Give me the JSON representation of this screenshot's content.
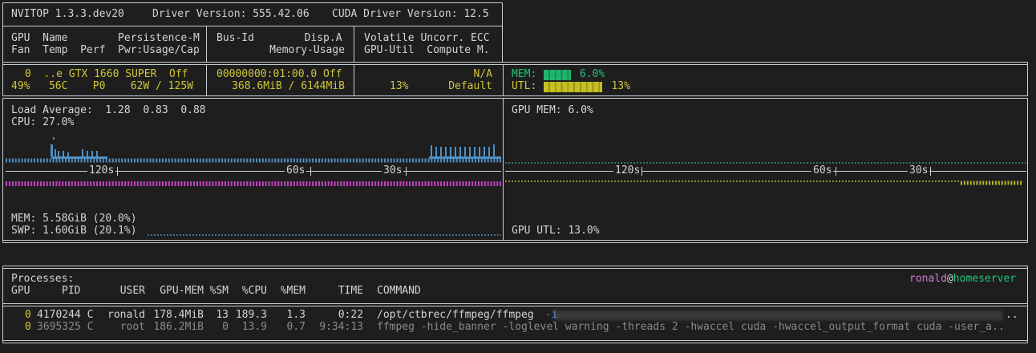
{
  "header": {
    "title": "NVITOP 1.3.3.dev20",
    "driver": "Driver Version: 555.42.06",
    "cuda": "CUDA Driver Version: 12.5"
  },
  "gpu_table": {
    "header": [
      [
        "GPU  Name        Persistence-M",
        "Fan  Temp  Perf  Pwr:Usage/Cap"
      ],
      [
        "Bus-Id        Disp.A",
        "Memory-Usage"
      ],
      [
        "Volatile Uncorr. ECC",
        "GPU-Util  Compute M."
      ]
    ],
    "row": {
      "name": "0  ..e GTX 1660 SUPER  Off",
      "stats": "49%   56C    P0    62W / 125W",
      "bus": "00000000:01:00.0 Off",
      "memory": "368.6MiB / 6144MiB",
      "ecc": "N/A",
      "util": "13%",
      "compute": "Default"
    },
    "meters": [
      {
        "name": "MEM:",
        "value": 6.0,
        "label": "6.0%"
      },
      {
        "name": "UTL:",
        "value": 13,
        "label": "13%"
      }
    ]
  },
  "cpu_panel": {
    "load": "Load Average:  1.28  0.83  0.88",
    "cpu": "CPU: 27.0%",
    "time_labels": [
      "120s",
      "60s",
      "30s"
    ],
    "mem": "MEM: 5.58GiB (20.0%)",
    "swap": "SWP: 1.60GiB (20.1%)"
  },
  "gpu_panel": {
    "mem": "GPU MEM: 6.0%",
    "time_labels": [
      "120s",
      "60s",
      "30s"
    ],
    "util": "GPU UTL: 13.0%"
  },
  "processes": {
    "title": "Processes:",
    "user": "ronald",
    "at": "@",
    "host": "homeserver",
    "columns": [
      "GPU",
      "PID",
      "USER",
      "GPU-MEM",
      "%SM",
      "%CPU",
      "%MEM",
      "TIME",
      "COMMAND"
    ],
    "rows": [
      {
        "gpu": "0",
        "pid": "4170244 C",
        "user": "ronald",
        "gpu_mem": "178.4MiB",
        "sm": "13",
        "cpu": "189.3",
        "mem": "1.3",
        "time": "0:22",
        "command": "/opt/ctbrec/ffmpeg/ffmpeg",
        "option": "-i",
        "truncation": ".."
      },
      {
        "gpu": "0",
        "pid": "3695325 C",
        "user": "root",
        "gpu_mem": "186.2MiB",
        "sm": "0",
        "cpu": "13.9",
        "mem": "0.7",
        "time": "9:34:13",
        "command": "ffmpeg -hide_banner -loglevel warning -threads 2 -hwaccel cuda -hwaccel_output_format cuda -user_a.."
      }
    ]
  }
}
